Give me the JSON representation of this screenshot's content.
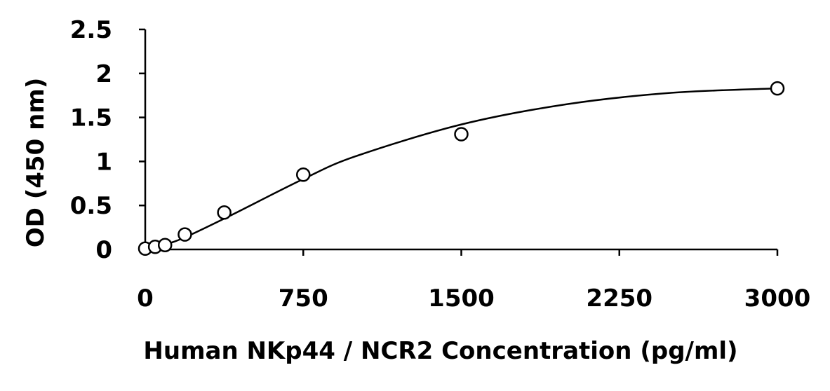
{
  "chart_data": {
    "type": "scatter",
    "title": "",
    "xlabel": "Human NKp44 / NCR2 Concentration (pg/ml)",
    "ylabel": "OD (450 nm)",
    "xlim": [
      0,
      3000
    ],
    "ylim": [
      0,
      2.5
    ],
    "x_ticks": [
      0,
      750,
      1500,
      2250,
      3000
    ],
    "x_tick_labels": [
      "0",
      "750",
      "1500",
      "2250",
      "3000"
    ],
    "y_ticks": [
      0,
      0.5,
      1,
      1.5,
      2,
      2.5
    ],
    "y_tick_labels": [
      "0",
      "0.5",
      "1",
      "1.5",
      "2",
      "2.5"
    ],
    "grid": false,
    "marker": "open-circle",
    "series": [
      {
        "x": [
          0,
          47,
          94,
          188,
          375,
          750,
          1500,
          3000
        ],
        "y": [
          0.01,
          0.03,
          0.05,
          0.17,
          0.42,
          0.85,
          1.31,
          1.83
        ]
      }
    ],
    "fit": {
      "type": "smooth-curve",
      "x": [
        0,
        100,
        200,
        400,
        750,
        1000,
        1500,
        2000,
        2500,
        3000
      ],
      "y": [
        0.0,
        0.06,
        0.15,
        0.38,
        0.8,
        1.06,
        1.42,
        1.65,
        1.78,
        1.83
      ]
    },
    "colors": {
      "axis": "#000000",
      "marker_fill": "#ffffff",
      "marker_stroke": "#000000"
    }
  }
}
